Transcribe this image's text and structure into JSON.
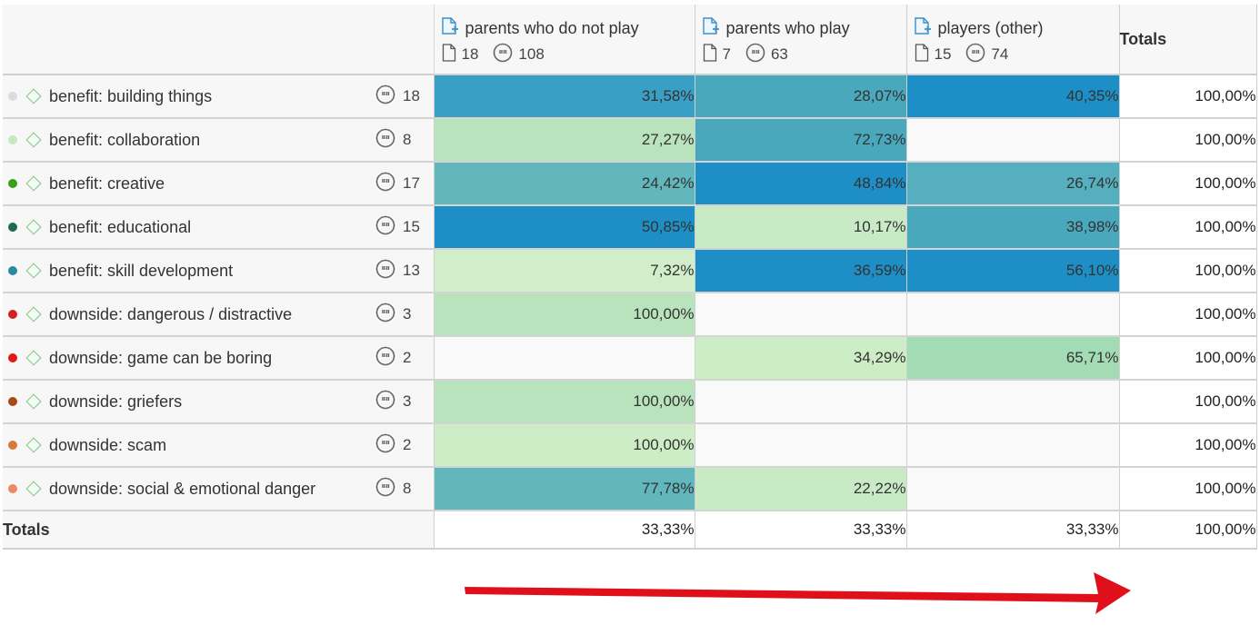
{
  "columns": [
    {
      "name": "parents who do not play",
      "docs": "18",
      "codes": "108"
    },
    {
      "name": "parents who play",
      "docs": "7",
      "codes": "63"
    },
    {
      "name": "players (other)",
      "docs": "15",
      "codes": "74"
    }
  ],
  "totals_label": "Totals",
  "rows": [
    {
      "name": "benefit: building things",
      "count": "18",
      "dot_color": "#dcdcdc",
      "cells": [
        "31,58%",
        "28,07%",
        "40,35%"
      ],
      "cell_colors": [
        "#3a9fc4",
        "#4aa8bd",
        "#1e8fc6"
      ],
      "total": "100,00%"
    },
    {
      "name": "benefit: collaboration",
      "count": "8",
      "dot_color": "#c8e6c0",
      "cells": [
        "27,27%",
        "72,73%",
        ""
      ],
      "cell_colors": [
        "#b8e3bc",
        "#4aa8bd",
        ""
      ],
      "total": "100,00%"
    },
    {
      "name": "benefit: creative",
      "count": "17",
      "dot_color": "#3aa019",
      "cells": [
        "24,42%",
        "48,84%",
        "26,74%"
      ],
      "cell_colors": [
        "#62b7bc",
        "#1e8fc6",
        "#55afbe"
      ],
      "total": "100,00%"
    },
    {
      "name": "benefit: educational",
      "count": "15",
      "dot_color": "#1f6b50",
      "cells": [
        "50,85%",
        "10,17%",
        "38,98%"
      ],
      "cell_colors": [
        "#1e8fc6",
        "#c8ebc6",
        "#4aa8bd"
      ],
      "total": "100,00%"
    },
    {
      "name": "benefit: skill development",
      "count": "13",
      "dot_color": "#2a8aa0",
      "cells": [
        "7,32%",
        "36,59%",
        "56,10%"
      ],
      "cell_colors": [
        "#d2edc9",
        "#1e8fc6",
        "#1e8fc6"
      ],
      "total": "100,00%"
    },
    {
      "name": "downside: dangerous / distractive",
      "count": "3",
      "dot_color": "#d42020",
      "cells": [
        "100,00%",
        "",
        ""
      ],
      "cell_colors": [
        "#b8e3bc",
        "",
        ""
      ],
      "total": "100,00%"
    },
    {
      "name": "downside: game can be boring",
      "count": "2",
      "dot_color": "#e01818",
      "cells": [
        "",
        "34,29%",
        "65,71%"
      ],
      "cell_colors": [
        "",
        "#cdedc6",
        "#a2dbb4"
      ],
      "total": "100,00%"
    },
    {
      "name": "downside: griefers",
      "count": "3",
      "dot_color": "#a34a16",
      "cells": [
        "100,00%",
        "",
        ""
      ],
      "cell_colors": [
        "#b8e3bc",
        "",
        ""
      ],
      "total": "100,00%"
    },
    {
      "name": "downside: scam",
      "count": "2",
      "dot_color": "#d9783a",
      "cells": [
        "100,00%",
        "",
        ""
      ],
      "cell_colors": [
        "#cdedc6",
        "",
        ""
      ],
      "total": "100,00%"
    },
    {
      "name": "downside: social & emotional danger",
      "count": "8",
      "dot_color": "#ee8866",
      "cells": [
        "77,78%",
        "22,22%",
        ""
      ],
      "cell_colors": [
        "#62b7bc",
        "#c8ebc6",
        ""
      ],
      "total": "100,00%"
    }
  ],
  "totals_row": {
    "label": "Totals",
    "cells": [
      "33,33%",
      "33,33%",
      "33,33%"
    ],
    "total": "100,00%"
  },
  "arrow_color": "#e0101a"
}
